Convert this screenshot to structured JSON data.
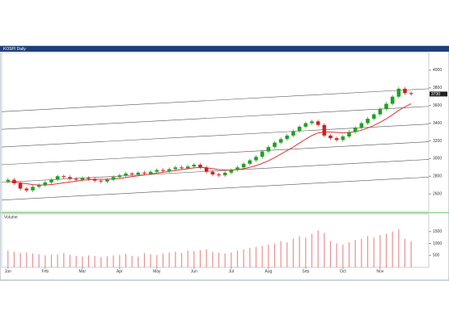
{
  "chart_data": {
    "type": "candlestick",
    "title": "KOSPI Daily",
    "volume_title": "Volume",
    "categories": [
      "Jan",
      null,
      null,
      null,
      null,
      null,
      "Feb",
      null,
      null,
      null,
      null,
      null,
      "Mar",
      null,
      null,
      null,
      null,
      null,
      "Apr",
      null,
      null,
      null,
      null,
      null,
      "May",
      null,
      null,
      null,
      null,
      null,
      "Jun",
      null,
      null,
      null,
      null,
      null,
      "Jul",
      null,
      null,
      null,
      null,
      null,
      "Aug",
      null,
      null,
      null,
      null,
      null,
      "Sep",
      null,
      null,
      null,
      null,
      null,
      "Oct",
      null,
      null,
      null,
      null,
      null,
      "Nov",
      null,
      null,
      null,
      null,
      null
    ],
    "open": [
      2740,
      2760,
      2720,
      2660,
      2640,
      2680,
      2700,
      2730,
      2760,
      2800,
      2790,
      2770,
      2760,
      2780,
      2770,
      2750,
      2740,
      2760,
      2790,
      2810,
      2830,
      2820,
      2840,
      2830,
      2850,
      2870,
      2860,
      2880,
      2900,
      2890,
      2910,
      2930,
      2900,
      2850,
      2820,
      2810,
      2840,
      2870,
      2900,
      2940,
      2980,
      3020,
      3080,
      3130,
      3180,
      3220,
      3260,
      3310,
      3360,
      3400,
      3420,
      3380,
      3260,
      3230,
      3210,
      3250,
      3300,
      3350,
      3400,
      3450,
      3500,
      3560,
      3620,
      3700,
      3790,
      3740
    ],
    "high": [
      2780,
      2780,
      2740,
      2680,
      2700,
      2720,
      2750,
      2780,
      2820,
      2820,
      2810,
      2790,
      2800,
      2800,
      2790,
      2770,
      2780,
      2810,
      2830,
      2850,
      2850,
      2860,
      2860,
      2870,
      2890,
      2890,
      2900,
      2920,
      2920,
      2930,
      2950,
      2950,
      2920,
      2870,
      2840,
      2860,
      2890,
      2920,
      2960,
      3000,
      3040,
      3100,
      3150,
      3200,
      3240,
      3280,
      3330,
      3380,
      3420,
      3440,
      3440,
      3400,
      3280,
      3250,
      3270,
      3320,
      3370,
      3420,
      3470,
      3520,
      3580,
      3640,
      3720,
      3810,
      3810,
      3760
    ],
    "low": [
      2720,
      2700,
      2640,
      2620,
      2620,
      2660,
      2680,
      2710,
      2740,
      2770,
      2750,
      2740,
      2740,
      2750,
      2730,
      2720,
      2720,
      2740,
      2770,
      2790,
      2800,
      2800,
      2810,
      2810,
      2830,
      2840,
      2840,
      2860,
      2870,
      2870,
      2890,
      2880,
      2830,
      2800,
      2790,
      2790,
      2820,
      2850,
      2880,
      2920,
      2960,
      3000,
      3060,
      3110,
      3160,
      3200,
      3240,
      3290,
      3340,
      3380,
      3360,
      3240,
      3210,
      3190,
      3190,
      3230,
      3280,
      3330,
      3380,
      3430,
      3480,
      3540,
      3600,
      3680,
      3720,
      3710
    ],
    "close": [
      2760,
      2720,
      2660,
      2640,
      2680,
      2700,
      2730,
      2760,
      2800,
      2790,
      2770,
      2760,
      2780,
      2770,
      2750,
      2740,
      2760,
      2790,
      2810,
      2830,
      2820,
      2840,
      2830,
      2850,
      2870,
      2860,
      2880,
      2900,
      2890,
      2910,
      2930,
      2900,
      2850,
      2820,
      2810,
      2840,
      2870,
      2900,
      2940,
      2980,
      3020,
      3080,
      3130,
      3180,
      3220,
      3260,
      3310,
      3360,
      3400,
      3420,
      3380,
      3260,
      3230,
      3210,
      3250,
      3300,
      3350,
      3400,
      3450,
      3500,
      3560,
      3620,
      3700,
      3790,
      3740,
      3730
    ],
    "up_color": "#22a022",
    "down_color": "#d02020",
    "moving_average": {
      "color": "#e03030",
      "values": [
        2740,
        2735,
        2725,
        2715,
        2705,
        2700,
        2700,
        2705,
        2715,
        2725,
        2735,
        2745,
        2755,
        2760,
        2765,
        2765,
        2765,
        2770,
        2775,
        2785,
        2795,
        2805,
        2815,
        2825,
        2835,
        2845,
        2855,
        2865,
        2875,
        2885,
        2895,
        2900,
        2895,
        2885,
        2875,
        2870,
        2870,
        2875,
        2885,
        2900,
        2920,
        2945,
        2975,
        3010,
        3050,
        3090,
        3130,
        3175,
        3220,
        3260,
        3290,
        3300,
        3300,
        3295,
        3290,
        3295,
        3305,
        3320,
        3345,
        3375,
        3410,
        3450,
        3495,
        3545,
        3585,
        3620
      ]
    },
    "channel": [
      [
        3530,
        3790
      ],
      [
        3330,
        3590
      ],
      [
        3130,
        3390
      ],
      [
        2930,
        3190
      ],
      [
        2730,
        2990
      ],
      [
        2530,
        2790
      ]
    ],
    "ylim": [
      2400,
      4200
    ],
    "yticks": [
      2600,
      2800,
      3000,
      3200,
      3400,
      3600,
      3800,
      4000
    ],
    "volume": [
      700,
      650,
      600,
      620,
      580,
      550,
      500,
      520,
      540,
      600,
      520,
      480,
      450,
      500,
      470,
      430,
      460,
      500,
      520,
      560,
      480,
      450,
      600,
      550,
      520,
      580,
      620,
      650,
      600,
      700,
      680,
      720,
      750,
      650,
      600,
      580,
      620,
      700,
      750,
      800,
      850,
      900,
      950,
      1000,
      1100,
      1050,
      1200,
      1300,
      1250,
      1400,
      1550,
      1450,
      1100,
      1000,
      950,
      1050,
      1150,
      1200,
      1300,
      1250,
      1350,
      1400,
      1500,
      1600,
      1200,
      1100
    ],
    "volume_color": "#e89090",
    "volume_ylim": [
      0,
      2000
    ],
    "volume_yticks": [
      500,
      1000,
      1500
    ]
  }
}
